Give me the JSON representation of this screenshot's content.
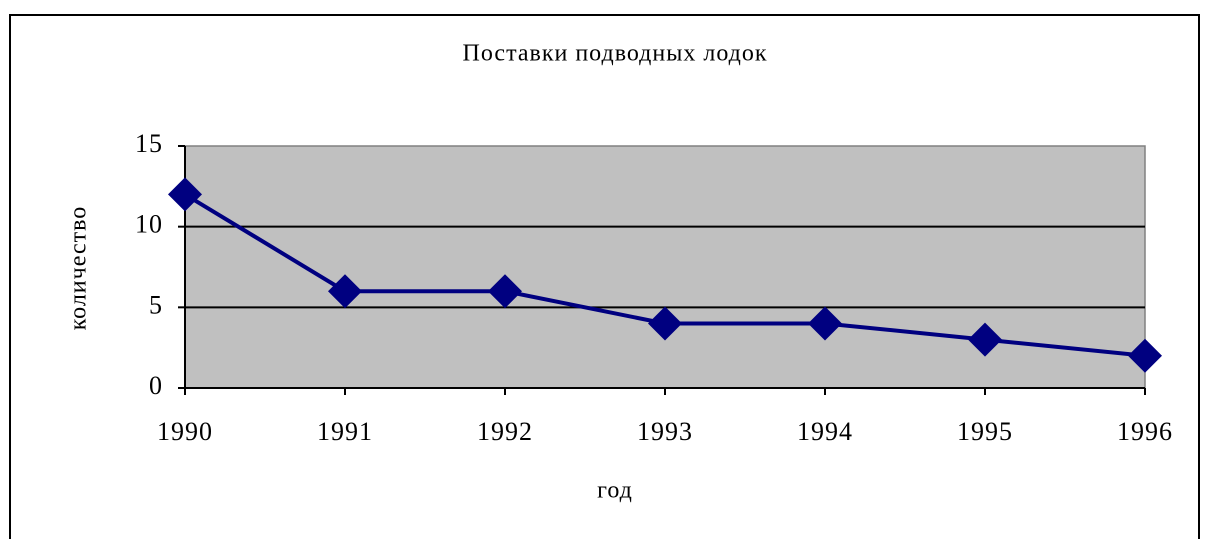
{
  "chart_data": {
    "type": "line",
    "title": "Поставки подводных лодок",
    "x": [
      1990,
      1991,
      1992,
      1993,
      1994,
      1995,
      1996
    ],
    "series": [
      {
        "name": "Поставки",
        "color": "#000080",
        "values": [
          12,
          6,
          6,
          4,
          4,
          3,
          2
        ]
      }
    ],
    "xlim": [
      1990,
      1996
    ],
    "xticks": [
      1990,
      1991,
      1992,
      1993,
      1994,
      1995,
      1996
    ],
    "ylim": [
      0,
      15
    ],
    "yticks": [
      0,
      5,
      10,
      15
    ],
    "grid": true,
    "xlabel": "год",
    "ylabel": "количество"
  }
}
